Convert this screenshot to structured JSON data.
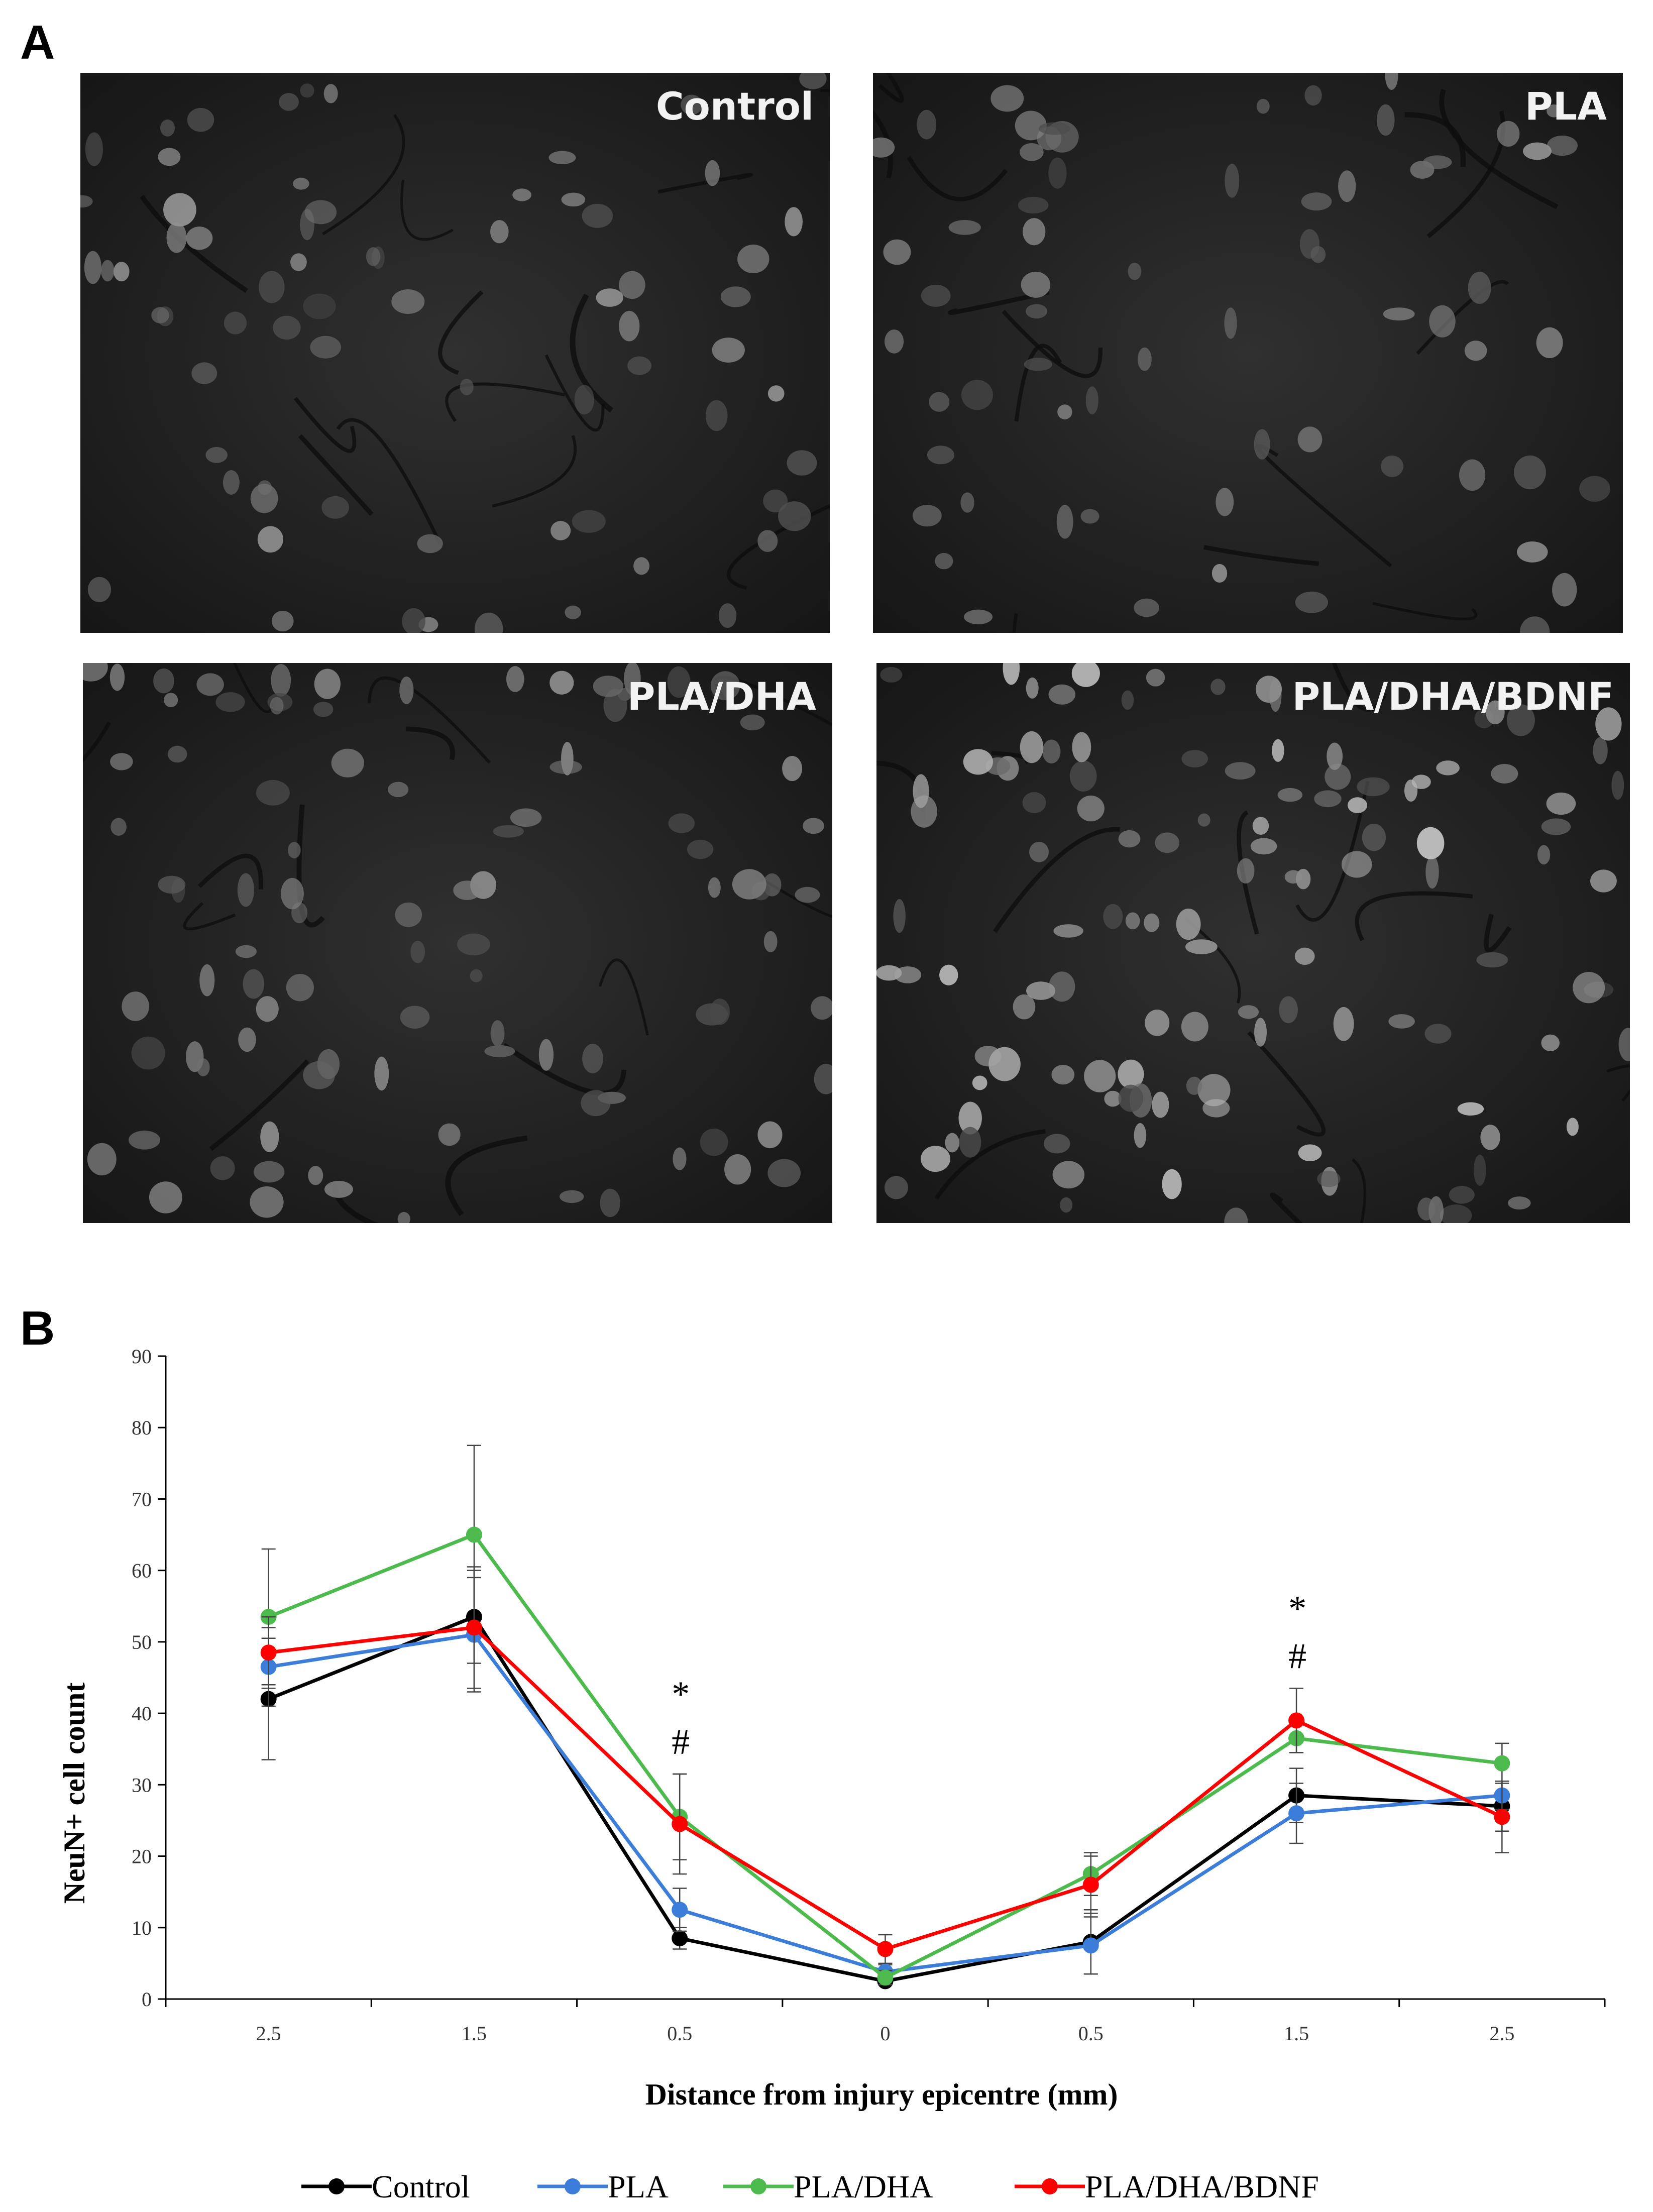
{
  "panel_a": {
    "letter": "A",
    "images": [
      {
        "label": "Control"
      },
      {
        "label": "PLA"
      },
      {
        "label": "PLA/DHA"
      },
      {
        "label": "PLA/DHA/BDNF"
      }
    ]
  },
  "panel_b": {
    "letter": "B"
  },
  "chart_data": {
    "type": "line",
    "title": "",
    "xlabel": "Distance from injury epicentre (mm)",
    "ylabel": "NeuN+ cell count",
    "categories": [
      "2.5",
      "1.5",
      "0.5",
      "0",
      "0.5",
      "1.5",
      "2.5"
    ],
    "ylim": [
      0,
      90
    ],
    "yticks": [
      0,
      10,
      20,
      30,
      40,
      50,
      60,
      70,
      80,
      90
    ],
    "grid": false,
    "legend_position": "bottom",
    "series": [
      {
        "name": "Control",
        "color": "#000000",
        "values": [
          42,
          53.5,
          8.5,
          2.5,
          8,
          28.5,
          27
        ],
        "errors": [
          8.5,
          6.5,
          1.5,
          0.5,
          4.5,
          3.8,
          3.5
        ]
      },
      {
        "name": "PLA",
        "color": "#3b7dd8",
        "values": [
          46.5,
          51,
          12.5,
          3.8,
          7.5,
          26,
          28.5
        ],
        "errors": [
          5.5,
          8,
          3,
          1,
          4,
          4.2,
          2
        ]
      },
      {
        "name": "PLA/DHA",
        "color": "#4cba4c",
        "values": [
          53.5,
          65,
          25.5,
          3,
          17.5,
          36.5,
          33
        ],
        "errors": [
          9.5,
          12.5,
          6,
          1,
          3,
          2,
          2.8
        ]
      },
      {
        "name": "PLA/DHA/BDNF",
        "color": "#ff0000",
        "values": [
          48.5,
          52,
          24.5,
          7,
          16,
          39,
          25.5
        ],
        "errors": [
          5,
          8.5,
          7,
          2,
          4,
          4.5,
          5
        ]
      }
    ],
    "annotations": [
      {
        "category_index": 2,
        "lines": [
          "*",
          "#"
        ]
      },
      {
        "category_index": 5,
        "lines": [
          "*",
          "#"
        ]
      }
    ]
  }
}
